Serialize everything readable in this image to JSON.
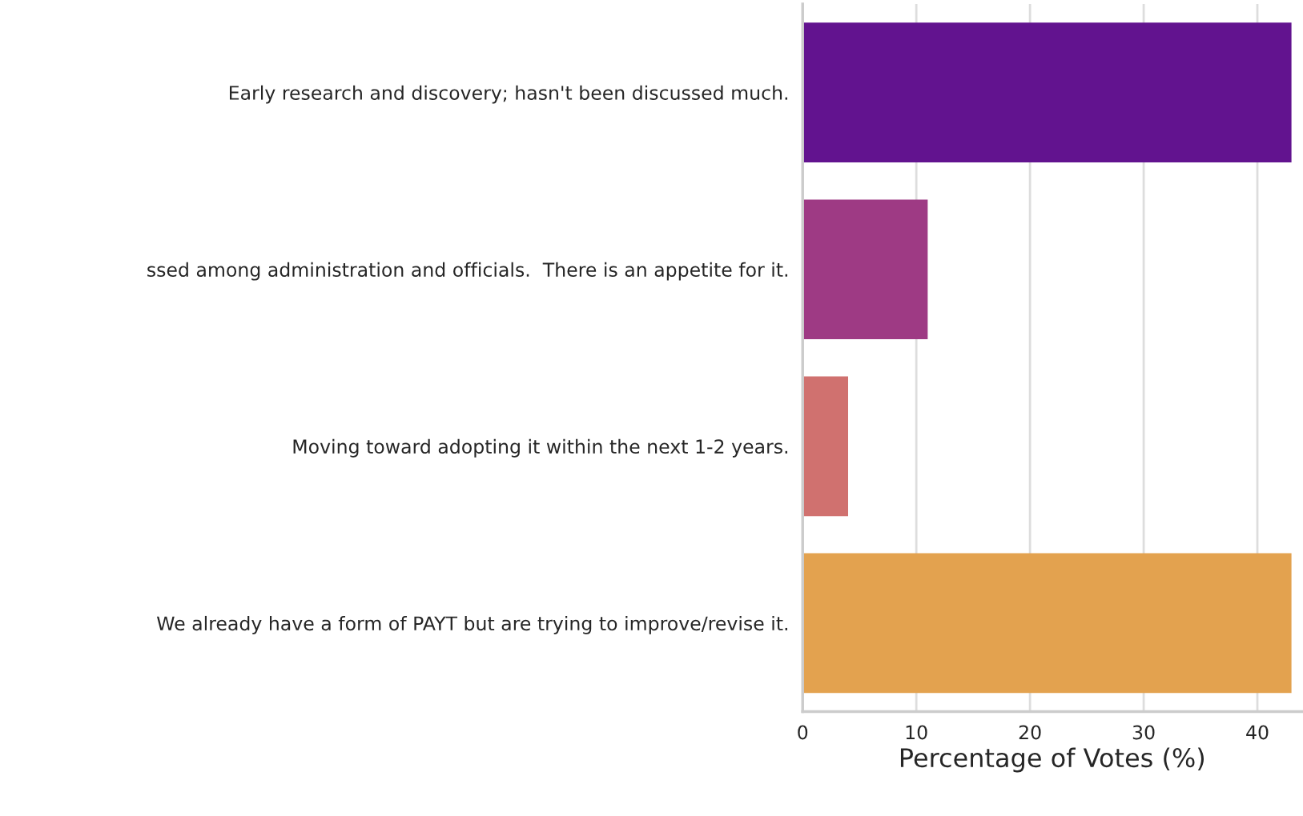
{
  "chart_data": {
    "type": "bar",
    "orientation": "horizontal",
    "categories": [
      "Early research and discovery; hasn't been discussed much.",
      "ssed among administration and officials.  There is an appetite for it.",
      "Moving toward adopting it within the next 1-2 years.",
      "We already have a form of PAYT but are trying to improve/revise it."
    ],
    "values": [
      43,
      11,
      4,
      43
    ],
    "colors": [
      "#62138f",
      "#9e3a84",
      "#d0716f",
      "#e3a24f"
    ],
    "xlim": [
      0,
      43.9
    ],
    "xticks": [
      0,
      10,
      20,
      30,
      40
    ],
    "xlabel": "Percentage of Votes (%)",
    "grid": "x",
    "legend": false
  }
}
